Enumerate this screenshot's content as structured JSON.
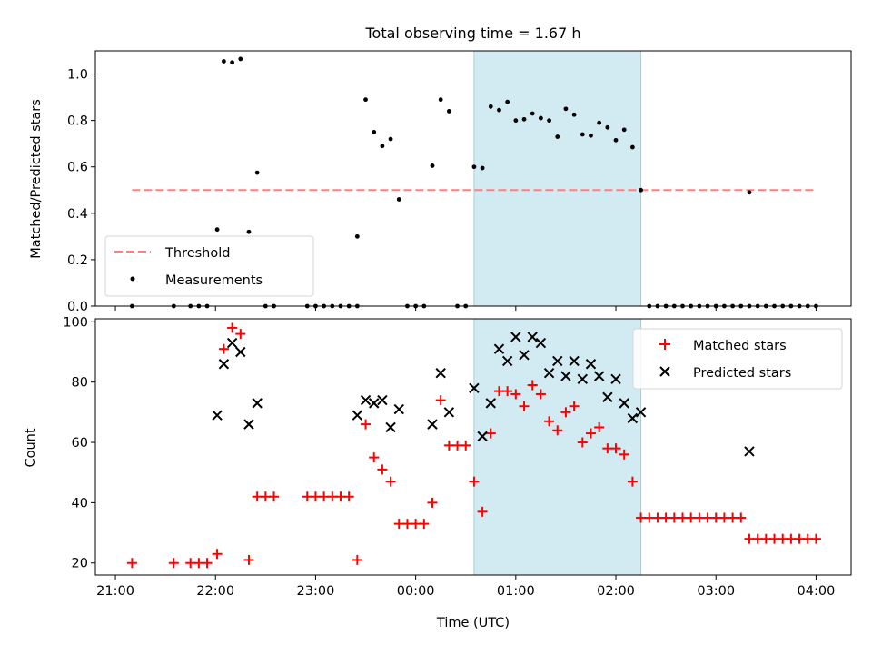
{
  "chart_data": [
    {
      "type": "scatter",
      "title": "Total observing time = 1.67 h",
      "ylabel": "Matched/Predicted stars",
      "xlabel": "",
      "xlim": [
        "21:00",
        "04:00"
      ],
      "ylim": [
        0,
        1.1
      ],
      "yticks": [
        "0.0",
        "0.2",
        "0.4",
        "0.6",
        "0.8",
        "1.0"
      ],
      "shaded_region": {
        "start": "00:35",
        "end": "02:15",
        "color": "#add8e6"
      },
      "legend": {
        "placement": "lower-left",
        "entries": [
          "Threshold",
          "Measurements"
        ]
      },
      "threshold": {
        "name": "Threshold",
        "value": 0.5,
        "x_start": "21:10",
        "x_end": "04:00",
        "color": "#ff7f7f",
        "style": "dashed"
      },
      "series": [
        {
          "name": "Measurements",
          "color": "#000000",
          "marker": "dot",
          "points": [
            [
              "21:10",
              0
            ],
            [
              "21:35",
              0
            ],
            [
              "21:45",
              0
            ],
            [
              "21:50",
              0
            ],
            [
              "21:55",
              0
            ],
            [
              "22:01",
              0.33
            ],
            [
              "22:05",
              1.055
            ],
            [
              "22:10",
              1.05
            ],
            [
              "22:15",
              1.065
            ],
            [
              "22:20",
              0.32
            ],
            [
              "22:25",
              0.575
            ],
            [
              "22:30",
              0
            ],
            [
              "22:35",
              0
            ],
            [
              "22:55",
              0
            ],
            [
              "23:00",
              0
            ],
            [
              "23:05",
              0
            ],
            [
              "23:10",
              0
            ],
            [
              "23:15",
              0
            ],
            [
              "23:20",
              0
            ],
            [
              "23:25",
              0
            ],
            [
              "23:25",
              0.3
            ],
            [
              "23:30",
              0.89
            ],
            [
              "23:35",
              0.75
            ],
            [
              "23:40",
              0.69
            ],
            [
              "23:45",
              0.72
            ],
            [
              "23:50",
              0.46
            ],
            [
              "23:55",
              0
            ],
            [
              "24:00",
              0
            ],
            [
              "24:05",
              0
            ],
            [
              "24:10",
              0.605
            ],
            [
              "24:15",
              0.89
            ],
            [
              "24:20",
              0.84
            ],
            [
              "24:25",
              0
            ],
            [
              "24:30",
              0
            ],
            [
              "24:35",
              0.6
            ],
            [
              "24:40",
              0.595
            ],
            [
              "24:45",
              0.86
            ],
            [
              "24:50",
              0.845
            ],
            [
              "24:55",
              0.88
            ],
            [
              "25:00",
              0.8
            ],
            [
              "25:05",
              0.805
            ],
            [
              "25:10",
              0.83
            ],
            [
              "25:15",
              0.81
            ],
            [
              "25:20",
              0.8
            ],
            [
              "25:25",
              0.73
            ],
            [
              "25:30",
              0.85
            ],
            [
              "25:35",
              0.825
            ],
            [
              "25:40",
              0.74
            ],
            [
              "25:45",
              0.735
            ],
            [
              "25:50",
              0.79
            ],
            [
              "25:55",
              0.77
            ],
            [
              "26:00",
              0.715
            ],
            [
              "26:05",
              0.76
            ],
            [
              "26:10",
              0.685
            ],
            [
              "26:15",
              0.5
            ],
            [
              "26:20",
              0
            ],
            [
              "26:25",
              0
            ],
            [
              "26:30",
              0
            ],
            [
              "26:35",
              0
            ],
            [
              "26:40",
              0
            ],
            [
              "26:45",
              0
            ],
            [
              "26:50",
              0
            ],
            [
              "26:55",
              0
            ],
            [
              "27:00",
              0
            ],
            [
              "27:05",
              0
            ],
            [
              "27:10",
              0
            ],
            [
              "27:15",
              0
            ],
            [
              "27:20",
              0
            ],
            [
              "27:20",
              0.49
            ],
            [
              "27:25",
              0
            ],
            [
              "27:30",
              0
            ],
            [
              "27:35",
              0
            ],
            [
              "27:40",
              0
            ],
            [
              "27:45",
              0
            ],
            [
              "27:50",
              0
            ],
            [
              "27:55",
              0
            ],
            [
              "28:00",
              0
            ]
          ]
        }
      ]
    },
    {
      "type": "scatter",
      "title": "",
      "ylabel": "Count",
      "xlabel": "Time (UTC)",
      "xlim": [
        "21:00",
        "04:00"
      ],
      "ylim": [
        16,
        101
      ],
      "yticks": [
        "20",
        "40",
        "60",
        "80",
        "100"
      ],
      "xticks": [
        "21:00",
        "22:00",
        "23:00",
        "00:00",
        "01:00",
        "02:00",
        "03:00",
        "04:00"
      ],
      "shaded_region": {
        "start": "00:35",
        "end": "02:15",
        "color": "#add8e6"
      },
      "legend": {
        "placement": "top-right",
        "entries": [
          "Matched stars",
          "Predicted stars"
        ]
      },
      "series": [
        {
          "name": "Matched stars",
          "color": "#ff0000",
          "marker": "plus",
          "points": [
            [
              "21:10",
              20
            ],
            [
              "21:35",
              20
            ],
            [
              "21:45",
              20
            ],
            [
              "21:50",
              20
            ],
            [
              "21:55",
              20
            ],
            [
              "22:01",
              23
            ],
            [
              "22:05",
              91
            ],
            [
              "22:10",
              98
            ],
            [
              "22:15",
              96
            ],
            [
              "22:20",
              21
            ],
            [
              "22:25",
              42
            ],
            [
              "22:30",
              42
            ],
            [
              "22:35",
              42
            ],
            [
              "22:55",
              42
            ],
            [
              "23:00",
              42
            ],
            [
              "23:05",
              42
            ],
            [
              "23:10",
              42
            ],
            [
              "23:15",
              42
            ],
            [
              "23:20",
              42
            ],
            [
              "23:25",
              21
            ],
            [
              "23:30",
              66
            ],
            [
              "23:35",
              55
            ],
            [
              "23:40",
              51
            ],
            [
              "23:45",
              47
            ],
            [
              "23:50",
              33
            ],
            [
              "23:55",
              33
            ],
            [
              "24:00",
              33
            ],
            [
              "24:05",
              33
            ],
            [
              "24:10",
              40
            ],
            [
              "24:15",
              74
            ],
            [
              "24:20",
              59
            ],
            [
              "24:25",
              59
            ],
            [
              "24:30",
              59
            ],
            [
              "24:35",
              47
            ],
            [
              "24:40",
              37
            ],
            [
              "24:45",
              63
            ],
            [
              "24:50",
              77
            ],
            [
              "24:55",
              77
            ],
            [
              "25:00",
              76
            ],
            [
              "25:05",
              72
            ],
            [
              "25:10",
              79
            ],
            [
              "25:15",
              76
            ],
            [
              "25:20",
              67
            ],
            [
              "25:25",
              64
            ],
            [
              "25:30",
              70
            ],
            [
              "25:35",
              72
            ],
            [
              "25:40",
              60
            ],
            [
              "25:45",
              63
            ],
            [
              "25:50",
              65
            ],
            [
              "25:55",
              58
            ],
            [
              "26:00",
              58
            ],
            [
              "26:05",
              56
            ],
            [
              "26:10",
              47
            ],
            [
              "26:15",
              35
            ],
            [
              "26:20",
              35
            ],
            [
              "26:25",
              35
            ],
            [
              "26:30",
              35
            ],
            [
              "26:35",
              35
            ],
            [
              "26:40",
              35
            ],
            [
              "26:45",
              35
            ],
            [
              "26:50",
              35
            ],
            [
              "26:55",
              35
            ],
            [
              "27:00",
              35
            ],
            [
              "27:05",
              35
            ],
            [
              "27:10",
              35
            ],
            [
              "27:15",
              35
            ],
            [
              "27:20",
              28
            ],
            [
              "27:25",
              28
            ],
            [
              "27:30",
              28
            ],
            [
              "27:35",
              28
            ],
            [
              "27:40",
              28
            ],
            [
              "27:45",
              28
            ],
            [
              "27:50",
              28
            ],
            [
              "27:55",
              28
            ],
            [
              "28:00",
              28
            ]
          ]
        },
        {
          "name": "Predicted stars",
          "color": "#000000",
          "marker": "x",
          "points": [
            [
              "22:01",
              69
            ],
            [
              "22:05",
              86
            ],
            [
              "22:10",
              93
            ],
            [
              "22:15",
              90
            ],
            [
              "22:20",
              66
            ],
            [
              "22:25",
              73
            ],
            [
              "23:25",
              69
            ],
            [
              "23:30",
              74
            ],
            [
              "23:35",
              73
            ],
            [
              "23:40",
              74
            ],
            [
              "23:45",
              65
            ],
            [
              "23:50",
              71
            ],
            [
              "24:10",
              66
            ],
            [
              "24:15",
              83
            ],
            [
              "24:20",
              70
            ],
            [
              "24:35",
              78
            ],
            [
              "24:40",
              62
            ],
            [
              "24:45",
              73
            ],
            [
              "24:50",
              91
            ],
            [
              "24:55",
              87
            ],
            [
              "25:00",
              95
            ],
            [
              "25:05",
              89
            ],
            [
              "25:10",
              95
            ],
            [
              "25:15",
              93
            ],
            [
              "25:20",
              83
            ],
            [
              "25:25",
              87
            ],
            [
              "25:30",
              82
            ],
            [
              "25:35",
              87
            ],
            [
              "25:40",
              81
            ],
            [
              "25:45",
              86
            ],
            [
              "25:50",
              82
            ],
            [
              "25:55",
              75
            ],
            [
              "26:00",
              81
            ],
            [
              "26:05",
              73
            ],
            [
              "26:10",
              68
            ],
            [
              "26:15",
              70
            ],
            [
              "27:20",
              57
            ]
          ]
        }
      ]
    }
  ]
}
